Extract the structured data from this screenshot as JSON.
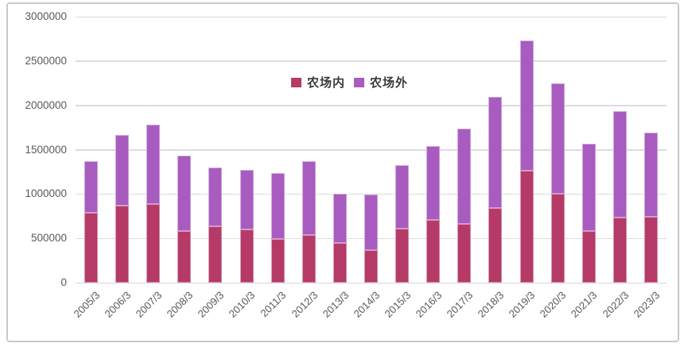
{
  "chart_data": {
    "type": "bar",
    "stacked": true,
    "title": "",
    "xlabel": "",
    "ylabel": "",
    "categories": [
      "2005/3",
      "2006/3",
      "2007/3",
      "2008/3",
      "2009/3",
      "2010/3",
      "2011/3",
      "2012/3",
      "2013/3",
      "2014/3",
      "2015/3",
      "2016/3",
      "2017/3",
      "2018/3",
      "2019/3",
      "2020/3",
      "2021/3",
      "2022/3",
      "2023/3"
    ],
    "series": [
      {
        "name": "农场内",
        "color": "#b53a68",
        "values": [
          790000,
          870000,
          890000,
          580000,
          640000,
          600000,
          490000,
          540000,
          450000,
          370000,
          610000,
          710000,
          660000,
          840000,
          1260000,
          1000000,
          580000,
          730000,
          740000
        ]
      },
      {
        "name": "农场外",
        "color": "#a85cbf",
        "values": [
          580000,
          800000,
          890000,
          850000,
          660000,
          670000,
          750000,
          830000,
          550000,
          620000,
          720000,
          830000,
          1080000,
          1260000,
          1470000,
          1250000,
          990000,
          1200000,
          950000
        ]
      }
    ],
    "ylim": [
      0,
      3000000
    ],
    "yticks": [
      0,
      500000,
      1000000,
      1500000,
      2000000,
      2500000,
      3000000
    ],
    "ytick_labels": [
      "0",
      "500000",
      "1000000",
      "1500000",
      "2000000",
      "2500000",
      "3000000"
    ],
    "grid": true,
    "legend_position": "inside-top-center"
  }
}
